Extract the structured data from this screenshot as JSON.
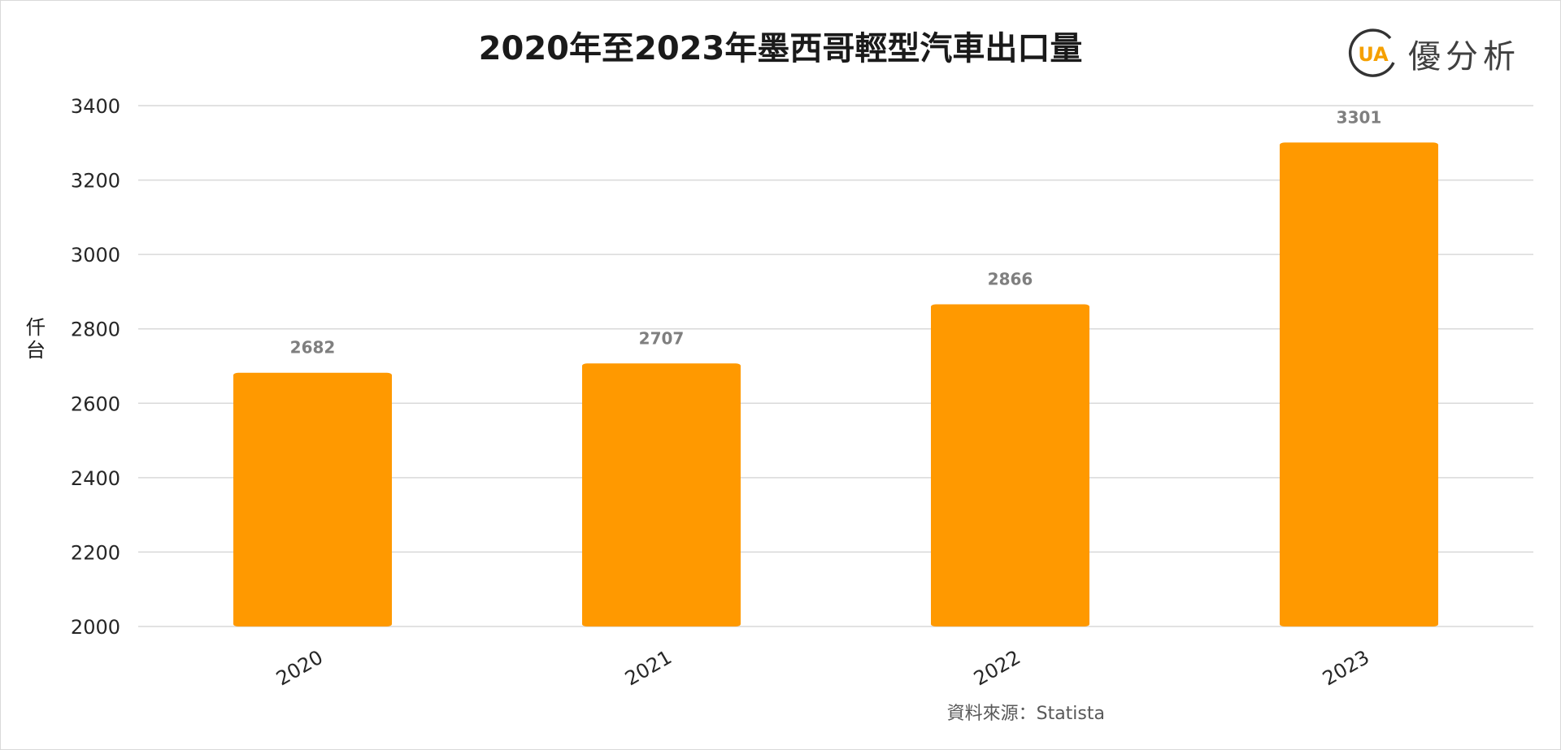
{
  "brand": {
    "logo_letters": "UA",
    "name": "優分析",
    "logo_ring_color": "#333333",
    "logo_accent_color": "#F5A000"
  },
  "chart_data": {
    "type": "bar",
    "title": "2020年至2023年墨西哥輕型汽車出口量",
    "categories": [
      "2020",
      "2021",
      "2022",
      "2023"
    ],
    "values": [
      2682,
      2707,
      2866,
      3301
    ],
    "data_labels": [
      "2682",
      "2707",
      "2866",
      "3301"
    ],
    "ylabel": "仟台",
    "xlabel": "",
    "ylim": [
      2000,
      3400
    ],
    "yticks": [
      2000,
      2200,
      2400,
      2600,
      2800,
      3000,
      3200,
      3400
    ],
    "ytick_labels": [
      "2000",
      "2200",
      "2400",
      "2600",
      "2800",
      "3000",
      "3200",
      "3400"
    ],
    "grid": true,
    "legend": "none",
    "bar_color": "#FF9900",
    "source": "資料來源：Statista"
  }
}
